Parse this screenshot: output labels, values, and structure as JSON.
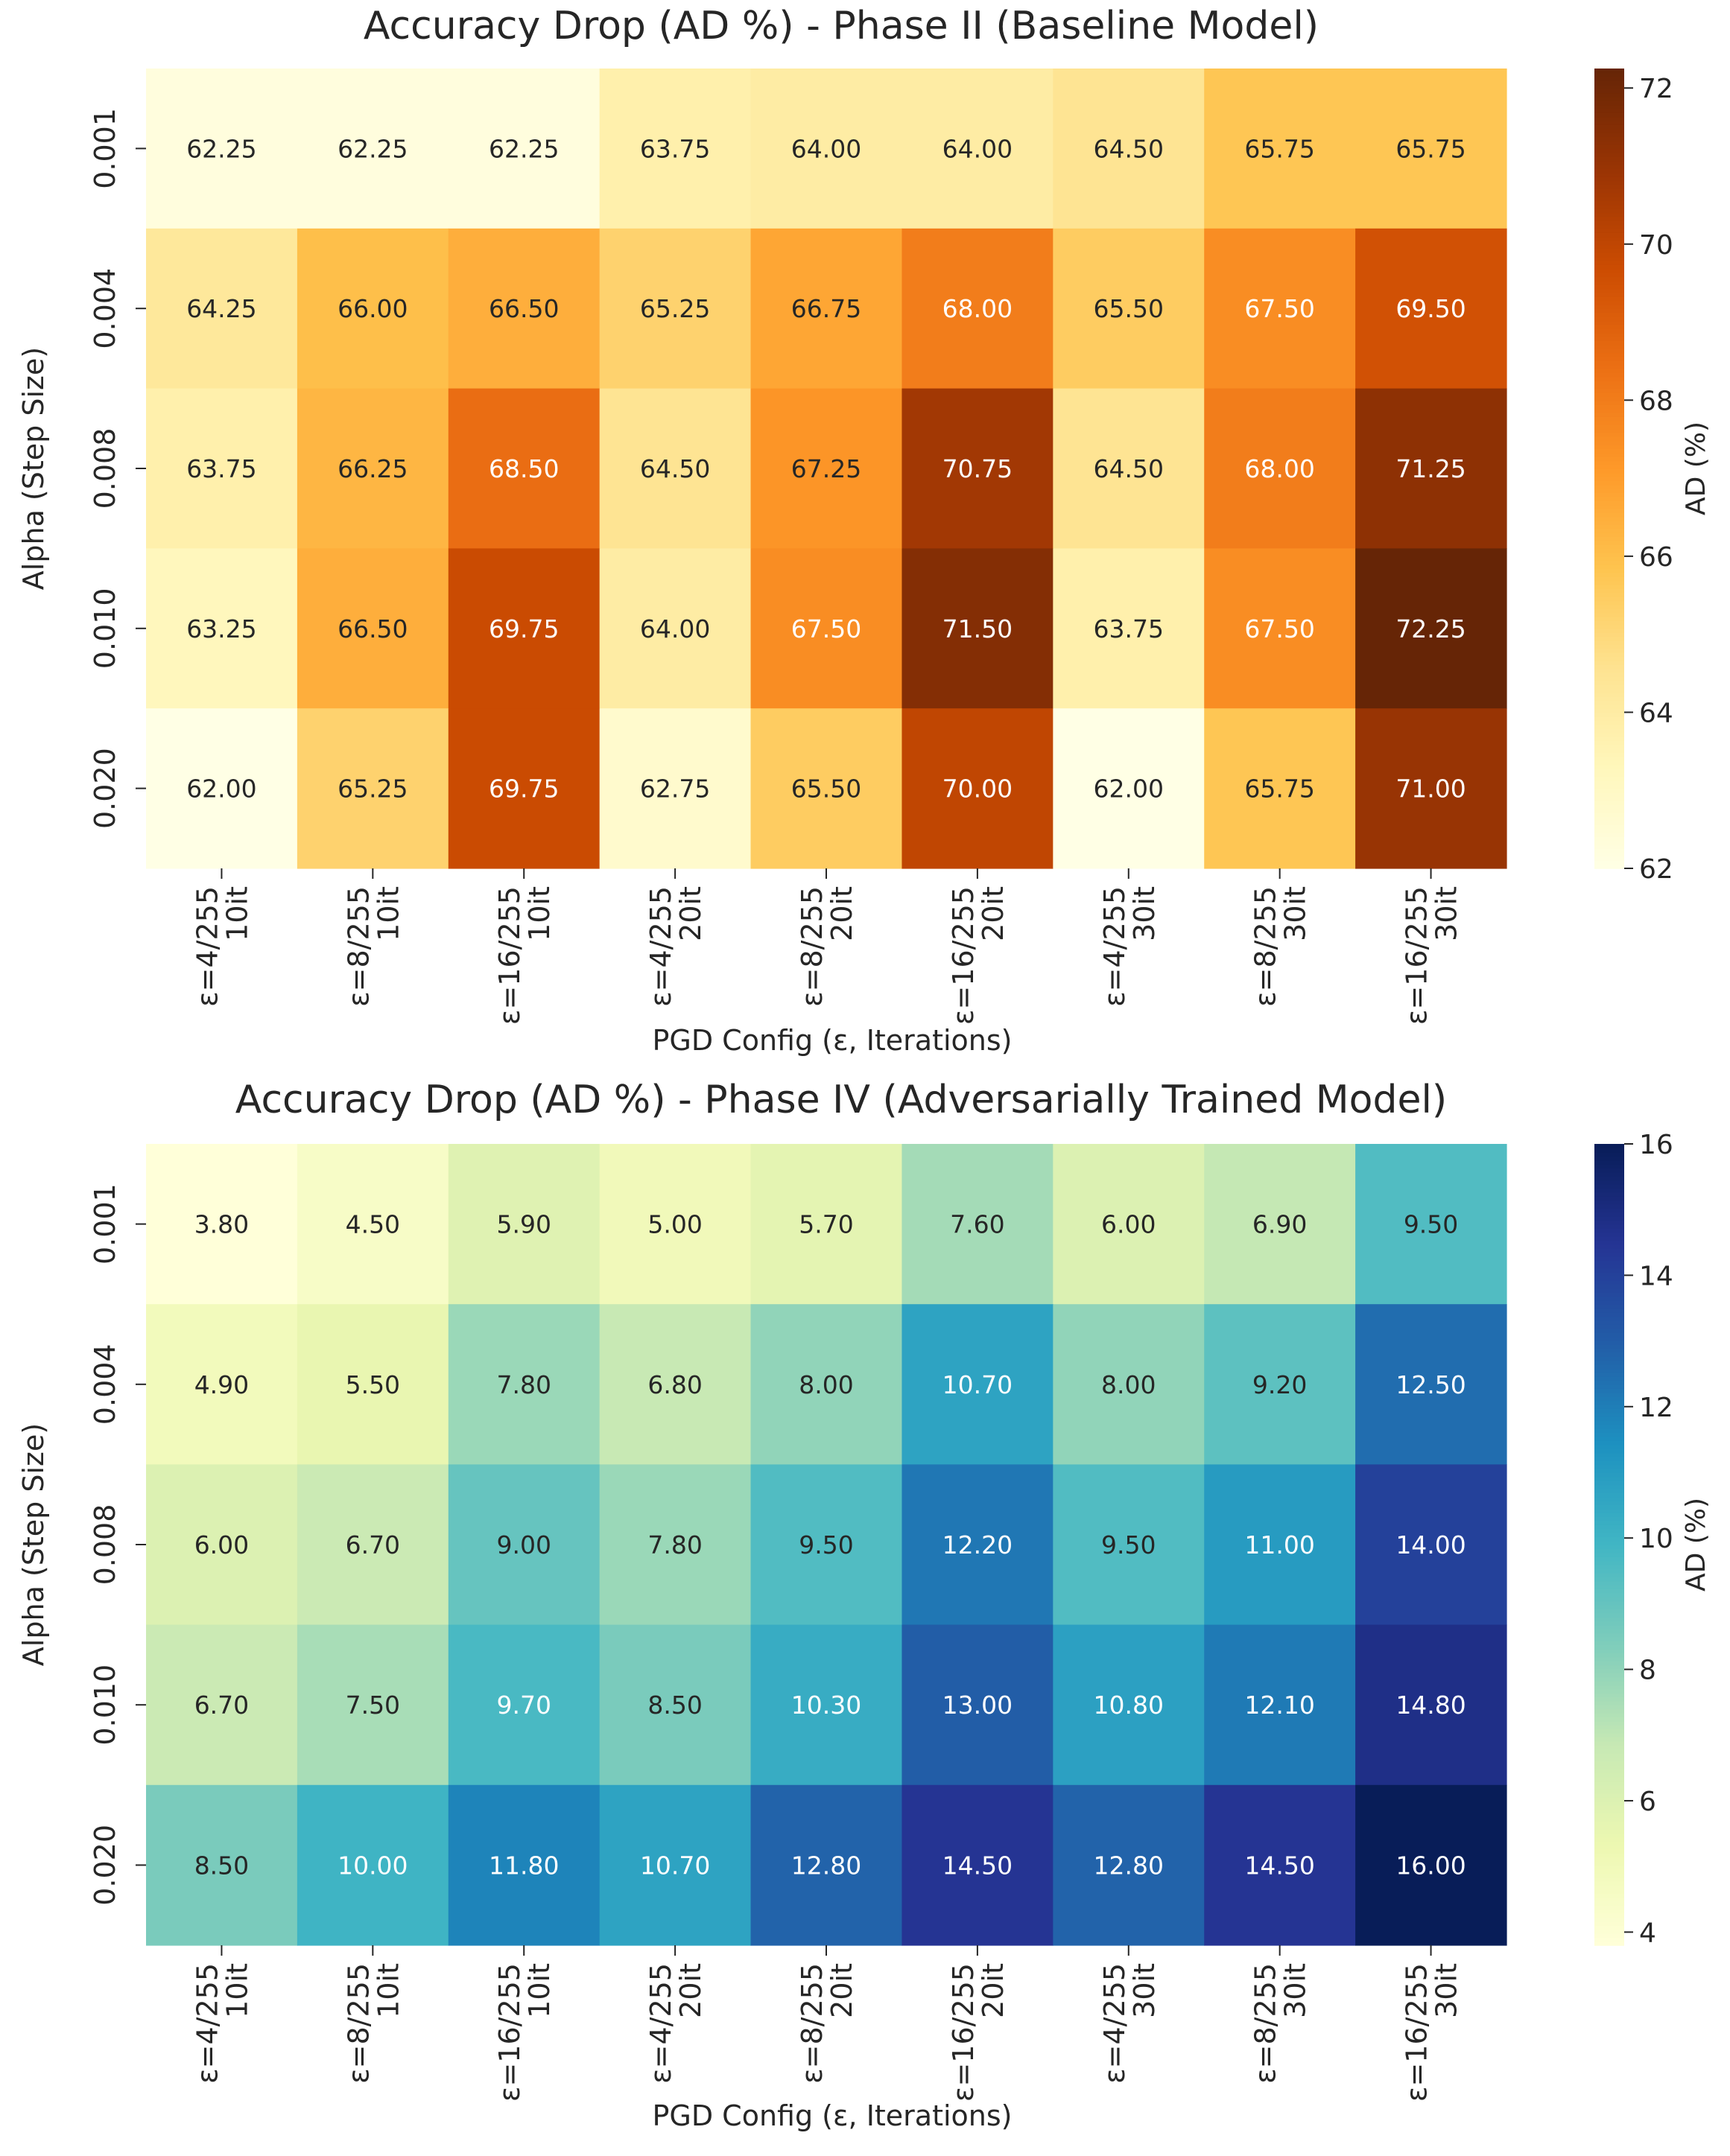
{
  "chart_data": [
    {
      "type": "heatmap",
      "title": "Accuracy Drop (AD %) - Phase II (Baseline Model)",
      "xlabel": "PGD Config (ε, Iterations)",
      "ylabel": "Alpha (Step Size)",
      "colorbar_label": "AD (%)",
      "colormap": "YlOrBr",
      "vmin": 62,
      "vmax": 72.25,
      "colorbar_ticks": [
        62,
        64,
        66,
        68,
        70,
        72
      ],
      "x_categories": [
        [
          "ε=4/255",
          "10it"
        ],
        [
          "ε=8/255",
          "10it"
        ],
        [
          "ε=16/255",
          "10it"
        ],
        [
          "ε=4/255",
          "20it"
        ],
        [
          "ε=8/255",
          "20it"
        ],
        [
          "ε=16/255",
          "20it"
        ],
        [
          "ε=4/255",
          "30it"
        ],
        [
          "ε=8/255",
          "30it"
        ],
        [
          "ε=16/255",
          "30it"
        ]
      ],
      "y_categories": [
        "0.001",
        "0.004",
        "0.008",
        "0.010",
        "0.020"
      ],
      "values": [
        [
          62.25,
          62.25,
          62.25,
          63.75,
          64.0,
          64.0,
          64.5,
          65.75,
          65.75
        ],
        [
          64.25,
          66.0,
          66.5,
          65.25,
          66.75,
          68.0,
          65.5,
          67.5,
          69.5
        ],
        [
          63.75,
          66.25,
          68.5,
          64.5,
          67.25,
          70.75,
          64.5,
          68.0,
          71.25
        ],
        [
          63.25,
          66.5,
          69.75,
          64.0,
          67.5,
          71.5,
          63.75,
          67.5,
          72.25
        ],
        [
          62.0,
          65.25,
          69.75,
          62.75,
          65.5,
          70.0,
          62.0,
          65.75,
          71.0
        ]
      ]
    },
    {
      "type": "heatmap",
      "title": "Accuracy Drop (AD %) - Phase IV (Adversarially Trained Model)",
      "xlabel": "PGD Config (ε, Iterations)",
      "ylabel": "Alpha (Step Size)",
      "colorbar_label": "AD (%)",
      "colormap": "YlGnBu",
      "vmin": 3.8,
      "vmax": 16,
      "colorbar_ticks": [
        4,
        6,
        8,
        10,
        12,
        14,
        16
      ],
      "x_categories": [
        [
          "ε=4/255",
          "10it"
        ],
        [
          "ε=8/255",
          "10it"
        ],
        [
          "ε=16/255",
          "10it"
        ],
        [
          "ε=4/255",
          "20it"
        ],
        [
          "ε=8/255",
          "20it"
        ],
        [
          "ε=16/255",
          "20it"
        ],
        [
          "ε=4/255",
          "30it"
        ],
        [
          "ε=8/255",
          "30it"
        ],
        [
          "ε=16/255",
          "30it"
        ]
      ],
      "y_categories": [
        "0.001",
        "0.004",
        "0.008",
        "0.010",
        "0.020"
      ],
      "values": [
        [
          3.8,
          4.5,
          5.9,
          5.0,
          5.7,
          7.6,
          6.0,
          6.9,
          9.5
        ],
        [
          4.9,
          5.5,
          7.8,
          6.8,
          8.0,
          10.7,
          8.0,
          9.2,
          12.5
        ],
        [
          6.0,
          6.7,
          9.0,
          7.8,
          9.5,
          12.2,
          9.5,
          11.0,
          14.0
        ],
        [
          6.7,
          7.5,
          9.7,
          8.5,
          10.3,
          13.0,
          10.8,
          12.1,
          14.8
        ],
        [
          8.5,
          10.0,
          11.8,
          10.7,
          12.8,
          14.5,
          12.8,
          14.5,
          16.0
        ]
      ]
    }
  ]
}
